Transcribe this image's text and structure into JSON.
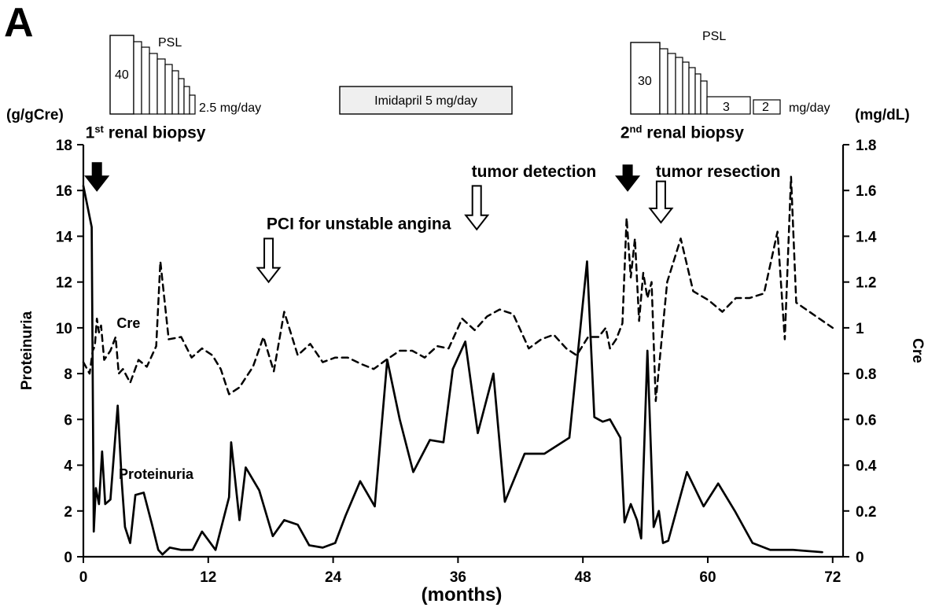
{
  "chart_data": {
    "type": "line",
    "panel_label": "A",
    "x_axis": {
      "label": "(months)",
      "range": [
        0,
        73
      ],
      "ticks": [
        0,
        12,
        24,
        36,
        48,
        60,
        72
      ]
    },
    "y_axis_left": {
      "label": "Proteinuria",
      "unit": "(g/gCre)",
      "range": [
        0,
        18
      ],
      "ticks": [
        0,
        2,
        4,
        6,
        8,
        10,
        12,
        14,
        16,
        18
      ]
    },
    "y_axis_right": {
      "label": "Cre",
      "unit": "(mg/dL)",
      "range": [
        0,
        1.8
      ],
      "ticks": [
        "0",
        "0.2",
        "0.4",
        "0.6",
        "0.8",
        "1",
        "1.2",
        "1.4",
        "1.6",
        "1.8"
      ]
    },
    "series": [
      {
        "name": "Proteinuria",
        "axis": "left",
        "style": "solid",
        "color": "#000000",
        "points": [
          [
            0,
            16.2
          ],
          [
            0.8,
            14.4
          ],
          [
            1.0,
            1.1
          ],
          [
            1.2,
            3.0
          ],
          [
            1.5,
            2.3
          ],
          [
            1.8,
            4.6
          ],
          [
            2.1,
            2.3
          ],
          [
            2.6,
            2.5
          ],
          [
            3.3,
            6.6
          ],
          [
            3.7,
            3.2
          ],
          [
            4.0,
            1.3
          ],
          [
            4.5,
            0.6
          ],
          [
            5.0,
            2.7
          ],
          [
            5.8,
            2.8
          ],
          [
            6.6,
            1.4
          ],
          [
            7.2,
            0.3
          ],
          [
            7.6,
            0.1
          ],
          [
            8.3,
            0.4
          ],
          [
            9.4,
            0.3
          ],
          [
            10.5,
            0.3
          ],
          [
            11.4,
            1.1
          ],
          [
            12.7,
            0.3
          ],
          [
            14.0,
            2.6
          ],
          [
            14.2,
            5.0
          ],
          [
            15.0,
            1.6
          ],
          [
            15.6,
            3.9
          ],
          [
            16.9,
            2.9
          ],
          [
            18.2,
            0.9
          ],
          [
            19.3,
            1.6
          ],
          [
            20.6,
            1.4
          ],
          [
            21.7,
            0.5
          ],
          [
            23.0,
            0.4
          ],
          [
            24.2,
            0.6
          ],
          [
            25.2,
            1.8
          ],
          [
            26.6,
            3.3
          ],
          [
            28.0,
            2.2
          ],
          [
            29.2,
            8.6
          ],
          [
            30.4,
            6.0
          ],
          [
            31.7,
            3.7
          ],
          [
            33.3,
            5.1
          ],
          [
            34.6,
            5.0
          ],
          [
            35.5,
            8.2
          ],
          [
            36.7,
            9.4
          ],
          [
            37.9,
            5.4
          ],
          [
            39.4,
            8.0
          ],
          [
            40.5,
            2.4
          ],
          [
            42.4,
            4.5
          ],
          [
            44.3,
            4.5
          ],
          [
            46.7,
            5.2
          ],
          [
            48.4,
            12.9
          ],
          [
            49.1,
            6.1
          ],
          [
            49.9,
            5.9
          ],
          [
            50.6,
            6.0
          ],
          [
            51.6,
            5.2
          ],
          [
            52.0,
            1.5
          ],
          [
            52.6,
            2.3
          ],
          [
            53.2,
            1.6
          ],
          [
            53.6,
            0.8
          ],
          [
            54.2,
            9.0
          ],
          [
            54.8,
            1.3
          ],
          [
            55.3,
            2.0
          ],
          [
            55.7,
            0.6
          ],
          [
            56.2,
            0.7
          ],
          [
            58.0,
            3.7
          ],
          [
            59.6,
            2.2
          ],
          [
            61.0,
            3.2
          ],
          [
            62.6,
            2.0
          ],
          [
            64.3,
            0.6
          ],
          [
            66.0,
            0.3
          ],
          [
            68.2,
            0.3
          ],
          [
            71.0,
            0.2
          ]
        ]
      },
      {
        "name": "Cre",
        "axis": "right",
        "style": "dashed",
        "color": "#000000",
        "points": [
          [
            0,
            0.85
          ],
          [
            0.6,
            0.8
          ],
          [
            0.9,
            0.9
          ],
          [
            1.1,
            0.92
          ],
          [
            1.3,
            1.04
          ],
          [
            1.5,
            0.98
          ],
          [
            1.7,
            1.01
          ],
          [
            2.0,
            0.86
          ],
          [
            2.6,
            0.9
          ],
          [
            3.1,
            0.96
          ],
          [
            3.4,
            0.8
          ],
          [
            3.8,
            0.82
          ],
          [
            4.5,
            0.76
          ],
          [
            5.3,
            0.86
          ],
          [
            6.1,
            0.83
          ],
          [
            7.0,
            0.92
          ],
          [
            7.4,
            1.29
          ],
          [
            8.2,
            0.95
          ],
          [
            9.4,
            0.96
          ],
          [
            10.4,
            0.87
          ],
          [
            11.4,
            0.91
          ],
          [
            12.4,
            0.88
          ],
          [
            13.2,
            0.82
          ],
          [
            14.0,
            0.71
          ],
          [
            15.0,
            0.74
          ],
          [
            16.3,
            0.83
          ],
          [
            17.3,
            0.96
          ],
          [
            18.3,
            0.81
          ],
          [
            19.3,
            1.07
          ],
          [
            20.6,
            0.88
          ],
          [
            21.8,
            0.93
          ],
          [
            23.0,
            0.85
          ],
          [
            24.2,
            0.87
          ],
          [
            25.4,
            0.87
          ],
          [
            26.8,
            0.84
          ],
          [
            27.9,
            0.82
          ],
          [
            29.1,
            0.86
          ],
          [
            30.4,
            0.9
          ],
          [
            31.6,
            0.9
          ],
          [
            32.8,
            0.87
          ],
          [
            34.0,
            0.92
          ],
          [
            35.1,
            0.91
          ],
          [
            36.4,
            1.04
          ],
          [
            37.6,
            0.99
          ],
          [
            38.8,
            1.05
          ],
          [
            40.0,
            1.08
          ],
          [
            41.3,
            1.06
          ],
          [
            42.8,
            0.91
          ],
          [
            44.0,
            0.95
          ],
          [
            45.2,
            0.97
          ],
          [
            46.4,
            0.91
          ],
          [
            47.4,
            0.88
          ],
          [
            48.5,
            0.96
          ],
          [
            49.5,
            0.96
          ],
          [
            50.2,
            1.0
          ],
          [
            50.6,
            0.91
          ],
          [
            51.2,
            0.95
          ],
          [
            51.8,
            1.02
          ],
          [
            52.2,
            1.48
          ],
          [
            52.6,
            1.22
          ],
          [
            53.0,
            1.39
          ],
          [
            53.4,
            1.03
          ],
          [
            53.8,
            1.24
          ],
          [
            54.2,
            1.13
          ],
          [
            54.6,
            1.2
          ],
          [
            55.0,
            0.68
          ],
          [
            56.1,
            1.2
          ],
          [
            57.4,
            1.39
          ],
          [
            58.6,
            1.16
          ],
          [
            60.1,
            1.12
          ],
          [
            61.4,
            1.07
          ],
          [
            62.7,
            1.13
          ],
          [
            64.0,
            1.13
          ],
          [
            65.4,
            1.15
          ],
          [
            66.7,
            1.42
          ],
          [
            67.4,
            0.95
          ],
          [
            68.0,
            1.66
          ],
          [
            68.5,
            1.11
          ],
          [
            72.0,
            1.0
          ]
        ]
      }
    ],
    "series_labels": [
      {
        "text": "Cre",
        "x": 3.2,
        "y": 10.0
      },
      {
        "text": "Proteinuria",
        "x": 3.4,
        "y": 3.4
      }
    ],
    "events": [
      {
        "text": "1st renal biopsy",
        "base": "1",
        "sup": "st",
        "rest": " renal biopsy",
        "x": 1.3,
        "style": "filled",
        "arrow_top": 17.2,
        "arrow_bottom": 16.0,
        "label_y": 18.3,
        "label_x": 0.2
      },
      {
        "text": "PCI for unstable angina",
        "x": 17.8,
        "style": "open",
        "arrow_top": 13.9,
        "arrow_bottom": 12.0,
        "label_y": 14.3,
        "label_x": 17.6
      },
      {
        "text": "tumor detection",
        "x": 37.8,
        "style": "open",
        "arrow_top": 16.2,
        "arrow_bottom": 14.3,
        "label_y": 16.6,
        "label_x": 37.3
      },
      {
        "text": "2nd renal biopsy",
        "base": "2",
        "sup": "nd",
        "rest": " renal biopsy",
        "x": 52.3,
        "style": "filled",
        "arrow_top": 17.1,
        "arrow_bottom": 16.0,
        "label_y": 18.3,
        "label_x": 51.6
      },
      {
        "text": "tumor resection",
        "x": 55.5,
        "style": "open",
        "arrow_top": 16.4,
        "arrow_bottom": 14.6,
        "label_y": 16.6,
        "label_x": 55.0
      }
    ],
    "treatments": {
      "psl_1": {
        "label": "PSL",
        "initial_value": "40",
        "final_label": "2.5 mg/day"
      },
      "imidapril": {
        "label": "Imidapril 5 mg/day"
      },
      "psl_2": {
        "label": "PSL",
        "initial_value": "30",
        "step_values": [
          "3",
          "2"
        ],
        "unit": "mg/day"
      }
    }
  }
}
